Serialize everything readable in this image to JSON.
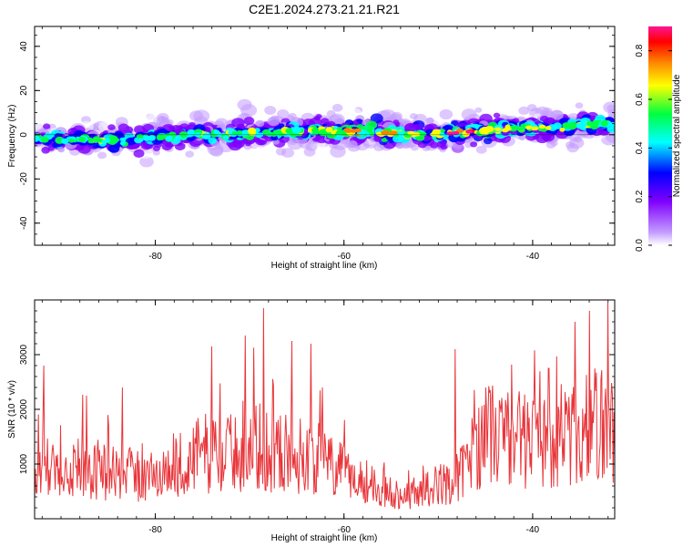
{
  "chart_data": [
    {
      "type": "heatmap",
      "title": "C2E1.2024.273.21.21.R21",
      "xlabel": "Height of straight line (km)",
      "ylabel": "Frequency (Hz)",
      "xlim": [
        -92.8,
        -31.3
      ],
      "ylim": [
        -50,
        49
      ],
      "xticks": [
        -80,
        -60,
        -40
      ],
      "yticks": [
        -40,
        -20,
        0,
        20,
        40
      ],
      "grid": false,
      "ridge": {
        "x": [
          -92,
          -88,
          -84,
          -80,
          -76,
          -72,
          -68,
          -64,
          -60,
          -56,
          -52,
          -48,
          -44,
          -40,
          -36,
          -32
        ],
        "freq": [
          -2,
          -2,
          -3,
          -1,
          0,
          0,
          1,
          2,
          2,
          1,
          0,
          1,
          2,
          3,
          4,
          5
        ],
        "peak_amplitude": [
          0.4,
          0.45,
          0.5,
          0.45,
          0.45,
          0.45,
          0.5,
          0.55,
          0.75,
          0.75,
          0.6,
          0.9,
          0.65,
          0.6,
          0.55,
          0.5
        ]
      },
      "colorbar": {
        "label": "Normalized spectral amplitude",
        "range": [
          0,
          0.9
        ],
        "ticks": [
          "0.0",
          "0.2",
          "0.4",
          "0.6",
          "0.8"
        ],
        "colormap": [
          "#ffffff",
          "#c29bff",
          "#8000ff",
          "#0000ff",
          "#00ffff",
          "#00ff40",
          "#ffff00",
          "#ff8000",
          "#ff0000",
          "#ff1493"
        ]
      }
    },
    {
      "type": "line",
      "title": "",
      "xlabel": "Height of straight line (km)",
      "ylabel": "SNR (10 * v/v)",
      "xlim": [
        -92.8,
        -31.3
      ],
      "ylim": [
        0,
        4000
      ],
      "xticks": [
        -80,
        -60,
        -40
      ],
      "yticks": [
        1000,
        2000,
        3000
      ],
      "grid": false,
      "series": [
        {
          "color": "#e8353a",
          "x": [
            -92.8,
            -90,
            -87,
            -84,
            -81,
            -78,
            -75,
            -72,
            -69,
            -66,
            -63,
            -60,
            -57,
            -54,
            -51,
            -48,
            -45,
            -42,
            -39,
            -36,
            -33,
            -31.3
          ],
          "y": [
            900,
            1100,
            1000,
            900,
            800,
            1000,
            1300,
            1300,
            1400,
            1300,
            1200,
            900,
            700,
            450,
            600,
            800,
            1700,
            1600,
            1500,
            1600,
            1900,
            1800
          ],
          "spikes": [
            {
              "x": -91.8,
              "y": 2800
            },
            {
              "x": -87.3,
              "y": 2250
            },
            {
              "x": -83.5,
              "y": 2400
            },
            {
              "x": -74,
              "y": 3150
            },
            {
              "x": -70.5,
              "y": 3350
            },
            {
              "x": -68.5,
              "y": 3850
            },
            {
              "x": -65.5,
              "y": 3250
            },
            {
              "x": -63.5,
              "y": 3200
            },
            {
              "x": -62.3,
              "y": 2400
            },
            {
              "x": -48.2,
              "y": 3100
            },
            {
              "x": -45,
              "y": 2400
            },
            {
              "x": -38.3,
              "y": 2750
            },
            {
              "x": -35.5,
              "y": 3600
            },
            {
              "x": -34,
              "y": 3800
            },
            {
              "x": -32,
              "y": 3950
            }
          ]
        }
      ]
    }
  ]
}
